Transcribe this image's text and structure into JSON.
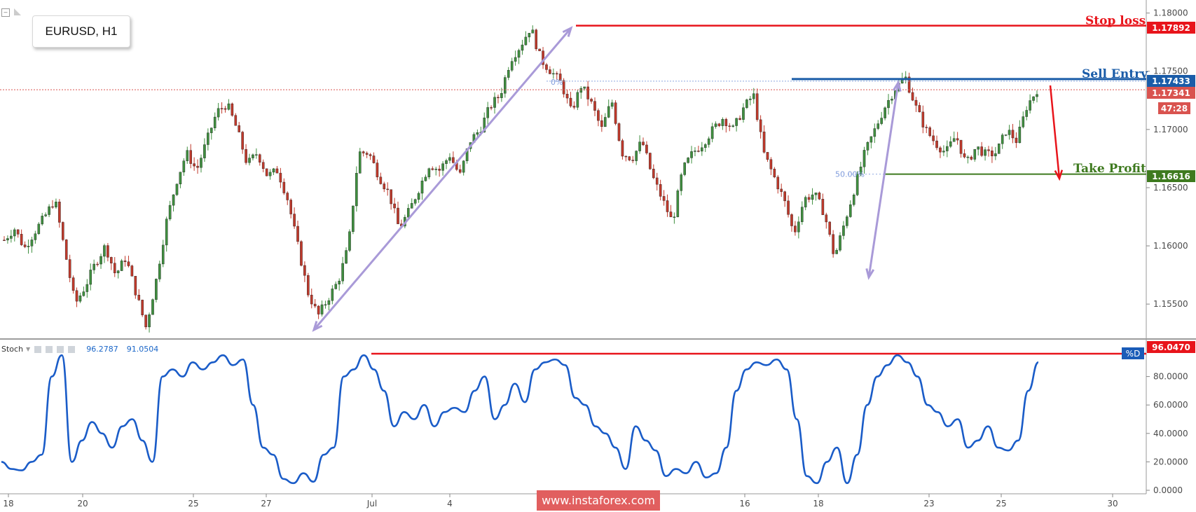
{
  "symbol": "EURUSD, H1",
  "labels": {
    "stop_loss": "Stop loss",
    "sell_entry": "Sell Entry",
    "take_profit": "Take Profit",
    "fib_50": "50.00%",
    "fib_top": "0%"
  },
  "price_tags": {
    "stop_loss": "1.17892",
    "sell_entry": "1.17433",
    "current": "1.17341",
    "countdown": "47:28",
    "take_profit": "1.16616",
    "stoch_level": "96.0470"
  },
  "price_axis": [
    "1.18000",
    "1.17500",
    "1.17000",
    "1.16500",
    "1.16000",
    "1.15500"
  ],
  "stoch_axis": [
    "80.0000",
    "60.0000",
    "40.0000",
    "20.0000",
    "0.0000"
  ],
  "time_axis": [
    "18",
    "20",
    "25",
    "27",
    "Jul",
    "4",
    "16",
    "18",
    "23",
    "25",
    "30"
  ],
  "stoch": {
    "name": "Stoch",
    "k": "96.2787",
    "d": "91.0504",
    "pd_label": "%D"
  },
  "watermark": "www.instaforex.com",
  "colors": {
    "stop_loss": "#e8141b",
    "sell_entry": "#1a5ca8",
    "take_profit": "#3e7a1f",
    "current": "#d9534f",
    "stoch_line": "#1a5cc8",
    "bull": "#3f8f3f",
    "bear": "#c0392b",
    "arrow_purple": "#a99ad8"
  },
  "chart_data": {
    "type": "candlestick",
    "y_range": [
      1.152,
      1.181
    ],
    "stoch_range": [
      0,
      100
    ],
    "levels": {
      "stop_loss": 1.17892,
      "sell_entry": 1.17433,
      "current": 1.17341,
      "take_profit": 1.16616,
      "stoch_level": 96.047
    },
    "price_path": [
      1.1605,
      1.1615,
      1.1598,
      1.1612,
      1.1625,
      1.164,
      1.1595,
      1.155,
      1.1565,
      1.1585,
      1.16,
      1.1575,
      1.159,
      1.156,
      1.153,
      1.157,
      1.162,
      1.1655,
      1.168,
      1.1665,
      1.169,
      1.1715,
      1.1722,
      1.17,
      1.167,
      1.168,
      1.166,
      1.1665,
      1.164,
      1.16,
      1.156,
      1.154,
      1.1555,
      1.157,
      1.16,
      1.168,
      1.168,
      1.166,
      1.1645,
      1.1615,
      1.163,
      1.165,
      1.167,
      1.1665,
      1.1678,
      1.166,
      1.169,
      1.17,
      1.172,
      1.173,
      1.176,
      1.1772,
      1.1788,
      1.176,
      1.175,
      1.174,
      1.1715,
      1.1738,
      1.1722,
      1.17,
      1.1725,
      1.168,
      1.1675,
      1.169,
      1.166,
      1.164,
      1.162,
      1.1665,
      1.168,
      1.1688,
      1.17,
      1.171,
      1.17,
      1.1718,
      1.173,
      1.168,
      1.166,
      1.164,
      1.161,
      1.164,
      1.1645,
      1.1628,
      1.159,
      1.162,
      1.165,
      1.168,
      1.17,
      1.172,
      1.1735,
      1.1745,
      1.172,
      1.17,
      1.1688,
      1.168,
      1.1695,
      1.167,
      1.1685,
      1.1678,
      1.168,
      1.17,
      1.169,
      1.172,
      1.1734
    ],
    "stoch_k": [
      20,
      15,
      14,
      20,
      25,
      80,
      95,
      20,
      35,
      48,
      40,
      30,
      45,
      50,
      35,
      20,
      80,
      85,
      80,
      90,
      85,
      90,
      95,
      88,
      92,
      60,
      30,
      25,
      8,
      5,
      12,
      6,
      25,
      30,
      80,
      85,
      95,
      85,
      70,
      45,
      55,
      50,
      60,
      45,
      55,
      58,
      55,
      70,
      80,
      50,
      60,
      75,
      62,
      85,
      90,
      92,
      88,
      65,
      60,
      45,
      40,
      30,
      15,
      45,
      35,
      28,
      10,
      15,
      12,
      20,
      9,
      12,
      30,
      70,
      85,
      90,
      88,
      92,
      85,
      50,
      10,
      5,
      20,
      30,
      5,
      25,
      60,
      80,
      88,
      95,
      90,
      80,
      60,
      55,
      45,
      50,
      30,
      35,
      45,
      30,
      28,
      35,
      70,
      90
    ]
  }
}
